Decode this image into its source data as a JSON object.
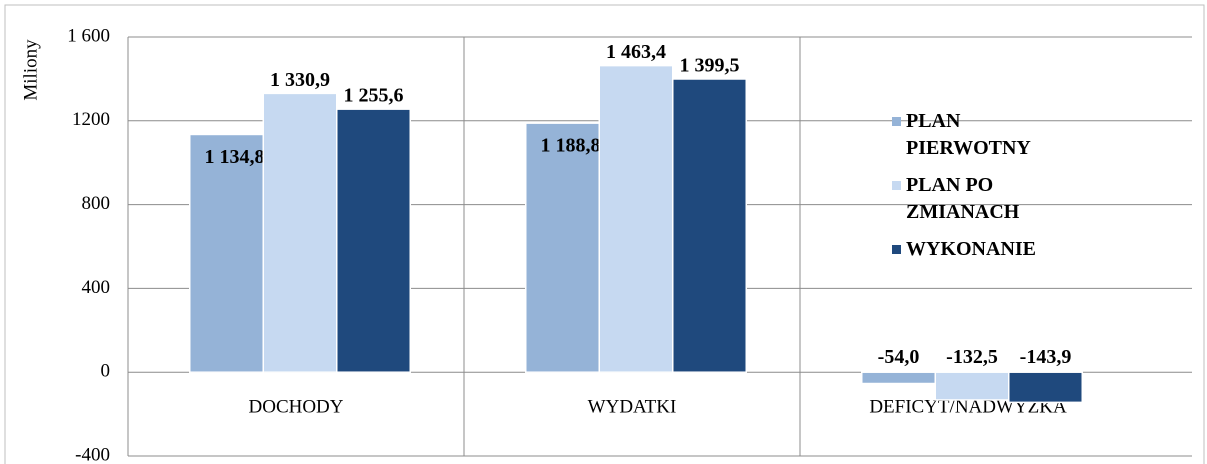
{
  "chart_data": {
    "type": "bar",
    "y_label": "Miliony",
    "categories": [
      "DOCHODY",
      "WYDATKI",
      "DEFICYT/NADWYŻKA"
    ],
    "series": [
      {
        "name": "PLAN PIERWOTNY",
        "color": "#95b3d7",
        "values": [
          1134.8,
          1188.8,
          -54.0
        ],
        "value_labels": [
          "1 134,8",
          "1 188,8",
          "-54,0"
        ]
      },
      {
        "name": "PLAN PO ZMIANACH",
        "color": "#c6d9f1",
        "values": [
          1330.9,
          1463.4,
          -132.5
        ],
        "value_labels": [
          "1 330,9",
          "1 463,4",
          "-132,5"
        ]
      },
      {
        "name": "WYKONANIE",
        "color": "#1f497d",
        "values": [
          1255.6,
          1399.5,
          -143.9
        ],
        "value_labels": [
          "1 255,6",
          "1 399,5",
          "-143,9"
        ]
      }
    ],
    "ylim": [
      -400,
      1600
    ],
    "yticks": [
      -400,
      0,
      400,
      800,
      1200,
      {
        "value": 1600,
        "label": "1 600"
      }
    ],
    "grid": true,
    "legend": "right"
  }
}
